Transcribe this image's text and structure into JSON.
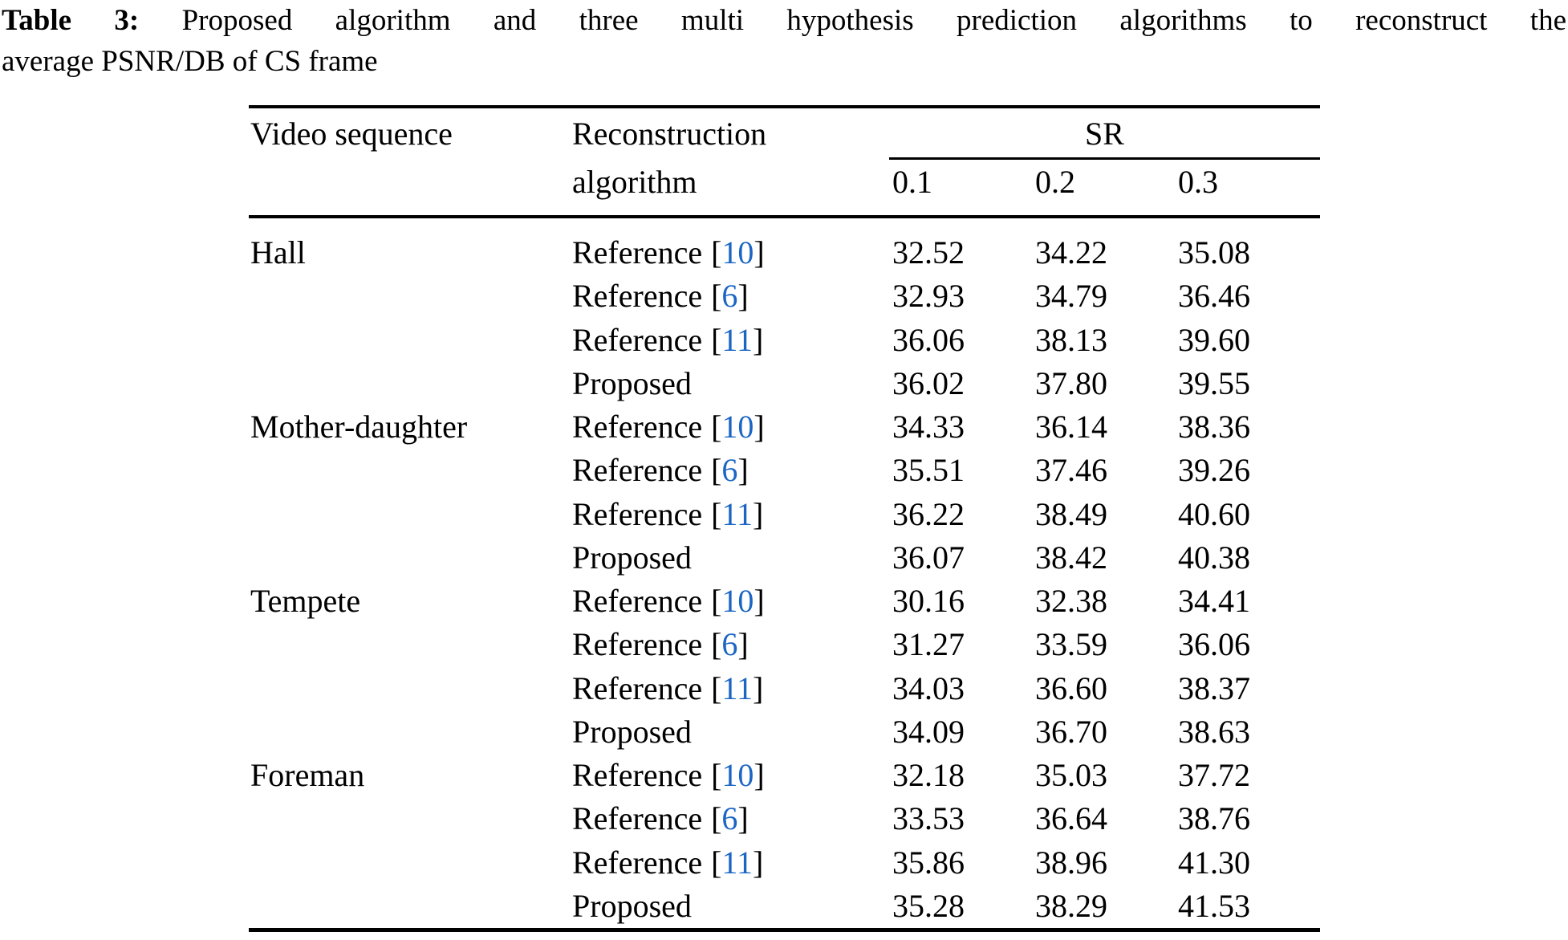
{
  "caption": {
    "label": "Table 3:",
    "line1": "Proposed algorithm and three multi hypothesis prediction algorithms to reconstruct the",
    "line2": "average PSNR/DB of CS frame"
  },
  "table": {
    "col1_header": "Video sequence",
    "col2_header_line1": "Reconstruction",
    "col2_header_line2": "algorithm",
    "sr_header": "SR",
    "sr_cols": [
      "0.1",
      "0.2",
      "0.3"
    ],
    "bracket_open": "[",
    "bracket_close": "]",
    "link_color": "#1b66c4",
    "rows": [
      {
        "sequence": "Hall",
        "algorithm": "Reference",
        "ref": "10",
        "values": [
          "32.52",
          "34.22",
          "35.08"
        ]
      },
      {
        "sequence": "",
        "algorithm": "Reference",
        "ref": "6",
        "values": [
          "32.93",
          "34.79",
          "36.46"
        ]
      },
      {
        "sequence": "",
        "algorithm": "Reference",
        "ref": "11",
        "values": [
          "36.06",
          "38.13",
          "39.60"
        ]
      },
      {
        "sequence": "",
        "algorithm": "Proposed",
        "ref": "",
        "values": [
          "36.02",
          "37.80",
          "39.55"
        ]
      },
      {
        "sequence": "Mother-daughter",
        "algorithm": "Reference",
        "ref": "10",
        "values": [
          "34.33",
          "36.14",
          "38.36"
        ]
      },
      {
        "sequence": "",
        "algorithm": "Reference",
        "ref": "6",
        "values": [
          "35.51",
          "37.46",
          "39.26"
        ]
      },
      {
        "sequence": "",
        "algorithm": "Reference",
        "ref": "11",
        "values": [
          "36.22",
          "38.49",
          "40.60"
        ]
      },
      {
        "sequence": "",
        "algorithm": "Proposed",
        "ref": "",
        "values": [
          "36.07",
          "38.42",
          "40.38"
        ]
      },
      {
        "sequence": "Tempete",
        "algorithm": "Reference",
        "ref": "10",
        "values": [
          "30.16",
          "32.38",
          "34.41"
        ]
      },
      {
        "sequence": "",
        "algorithm": "Reference",
        "ref": "6",
        "values": [
          "31.27",
          "33.59",
          "36.06"
        ]
      },
      {
        "sequence": "",
        "algorithm": "Reference",
        "ref": "11",
        "values": [
          "34.03",
          "36.60",
          "38.37"
        ]
      },
      {
        "sequence": "",
        "algorithm": "Proposed",
        "ref": "",
        "values": [
          "34.09",
          "36.70",
          "38.63"
        ]
      },
      {
        "sequence": "Foreman",
        "algorithm": "Reference",
        "ref": "10",
        "values": [
          "32.18",
          "35.03",
          "37.72"
        ]
      },
      {
        "sequence": "",
        "algorithm": "Reference",
        "ref": "6",
        "values": [
          "33.53",
          "36.64",
          "38.76"
        ]
      },
      {
        "sequence": "",
        "algorithm": "Reference",
        "ref": "11",
        "values": [
          "35.86",
          "38.96",
          "41.30"
        ]
      },
      {
        "sequence": "",
        "algorithm": "Proposed",
        "ref": "",
        "values": [
          "35.28",
          "38.29",
          "41.53"
        ]
      }
    ]
  }
}
